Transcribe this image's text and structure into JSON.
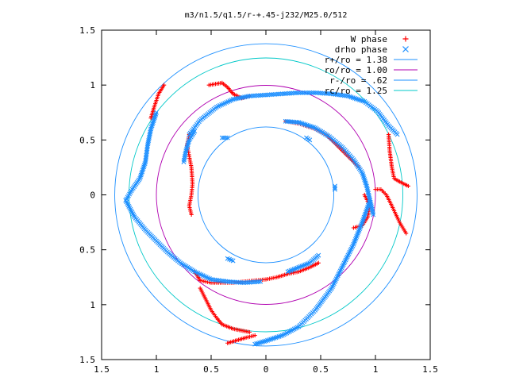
{
  "chart_data": {
    "type": "scatter",
    "title": "m3/n1.5/q1.5/r-+.45-j232/M25.0/512",
    "xlim": [
      -1.5,
      1.5
    ],
    "ylim": [
      -1.5,
      1.5
    ],
    "x_ticks": [
      -1.5,
      -1,
      -0.5,
      0,
      0.5,
      1,
      1.5
    ],
    "y_ticks": [
      -1.5,
      -1,
      -0.5,
      0,
      0.5,
      1,
      1.5
    ],
    "x_tick_labels": [
      "1.5",
      "1",
      "0.5",
      "0",
      "0.5",
      "1",
      "1.5"
    ],
    "y_tick_labels": [
      "1.5",
      "1",
      "0.5",
      "0",
      "0.5",
      "1",
      "1.5"
    ],
    "grid": false,
    "legend_position": "top-right",
    "series": [
      {
        "name": "W phase",
        "marker": "+",
        "color": "#ff0000",
        "arms": [
          [
            [
              -1.05,
              0.7
            ],
            [
              -1.02,
              0.8
            ],
            [
              -0.98,
              0.92
            ],
            [
              -0.93,
              1.0
            ]
          ],
          [
            [
              -0.52,
              1.0
            ],
            [
              -0.4,
              1.02
            ],
            [
              -0.35,
              0.98
            ],
            [
              -0.3,
              0.92
            ],
            [
              -0.22,
              0.88
            ],
            [
              -0.15,
              0.9
            ]
          ],
          [
            [
              -0.7,
              0.55
            ],
            [
              -0.72,
              0.45
            ],
            [
              -0.7,
              0.35
            ],
            [
              -0.68,
              0.25
            ],
            [
              -0.67,
              0.1
            ],
            [
              -0.68,
              0.0
            ],
            [
              -0.7,
              -0.1
            ],
            [
              -0.68,
              -0.18
            ]
          ],
          [
            [
              0.18,
              0.67
            ],
            [
              0.3,
              0.65
            ],
            [
              0.45,
              0.6
            ],
            [
              0.55,
              0.55
            ],
            [
              0.65,
              0.45
            ],
            [
              0.75,
              0.35
            ],
            [
              0.85,
              0.25
            ]
          ],
          [
            [
              1.12,
              0.55
            ],
            [
              1.13,
              0.4
            ],
            [
              1.15,
              0.25
            ],
            [
              1.17,
              0.15
            ],
            [
              1.22,
              0.12
            ],
            [
              1.3,
              0.08
            ]
          ],
          [
            [
              1.28,
              -0.35
            ],
            [
              1.22,
              -0.25
            ],
            [
              1.15,
              -0.1
            ],
            [
              1.1,
              0.0
            ],
            [
              1.05,
              0.05
            ],
            [
              1.0,
              0.05
            ]
          ],
          [
            [
              -0.65,
              -0.7
            ],
            [
              -0.6,
              -0.78
            ],
            [
              -0.5,
              -0.8
            ],
            [
              -0.4,
              -0.8
            ],
            [
              -0.3,
              -0.8
            ]
          ],
          [
            [
              -0.6,
              -0.85
            ],
            [
              -0.55,
              -0.95
            ],
            [
              -0.5,
              -1.05
            ],
            [
              -0.45,
              -1.12
            ],
            [
              -0.4,
              -1.18
            ],
            [
              -0.3,
              -1.22
            ],
            [
              -0.15,
              -1.25
            ]
          ],
          [
            [
              -0.35,
              -1.35
            ],
            [
              -0.25,
              -1.32
            ],
            [
              -0.18,
              -1.3
            ],
            [
              -0.1,
              -1.28
            ]
          ],
          [
            [
              0.9,
              0.0
            ],
            [
              0.95,
              -0.1
            ],
            [
              0.93,
              -0.2
            ],
            [
              0.88,
              -0.28
            ],
            [
              0.8,
              -0.3
            ]
          ],
          [
            [
              -0.3,
              -0.8
            ],
            [
              -0.2,
              -0.79
            ],
            [
              -0.1,
              -0.78
            ],
            [
              0.0,
              -0.77
            ],
            [
              0.1,
              -0.75
            ],
            [
              0.2,
              -0.72
            ],
            [
              0.3,
              -0.7
            ],
            [
              0.4,
              -0.66
            ],
            [
              0.48,
              -0.62
            ]
          ]
        ]
      },
      {
        "name": "drho phase",
        "marker": "x",
        "color": "#1e90ff",
        "arms": [
          [
            [
              -1.28,
              -0.05
            ],
            [
              -1.2,
              -0.2
            ],
            [
              -1.1,
              -0.32
            ],
            [
              -1.0,
              -0.42
            ],
            [
              -0.9,
              -0.52
            ],
            [
              -0.78,
              -0.62
            ],
            [
              -0.65,
              -0.7
            ],
            [
              -0.5,
              -0.77
            ],
            [
              -0.35,
              -0.79
            ],
            [
              -0.2,
              -0.8
            ],
            [
              -0.05,
              -0.79
            ]
          ],
          [
            [
              -1.0,
              0.75
            ],
            [
              -1.05,
              0.6
            ],
            [
              -1.08,
              0.45
            ],
            [
              -1.1,
              0.3
            ],
            [
              -1.15,
              0.15
            ],
            [
              -1.22,
              0.05
            ],
            [
              -1.28,
              -0.05
            ]
          ],
          [
            [
              -0.7,
              0.55
            ],
            [
              -0.6,
              0.68
            ],
            [
              -0.45,
              0.8
            ],
            [
              -0.3,
              0.87
            ],
            [
              -0.15,
              0.9
            ],
            [
              0.0,
              0.91
            ],
            [
              0.15,
              0.92
            ],
            [
              0.3,
              0.93
            ],
            [
              0.45,
              0.93
            ],
            [
              0.6,
              0.92
            ],
            [
              0.75,
              0.9
            ],
            [
              0.9,
              0.85
            ],
            [
              1.02,
              0.76
            ],
            [
              1.12,
              0.63
            ],
            [
              1.2,
              0.55
            ]
          ],
          [
            [
              -0.75,
              0.3
            ],
            [
              -0.73,
              0.4
            ],
            [
              -0.7,
              0.5
            ],
            [
              -0.65,
              0.58
            ]
          ],
          [
            [
              0.18,
              0.67
            ],
            [
              0.3,
              0.66
            ],
            [
              0.45,
              0.61
            ],
            [
              0.58,
              0.53
            ],
            [
              0.7,
              0.43
            ],
            [
              0.8,
              0.32
            ],
            [
              0.88,
              0.2
            ],
            [
              0.92,
              0.08
            ],
            [
              0.95,
              -0.05
            ],
            [
              0.98,
              -0.18
            ]
          ],
          [
            [
              0.95,
              -0.05
            ],
            [
              0.88,
              -0.25
            ],
            [
              0.8,
              -0.45
            ],
            [
              0.7,
              -0.65
            ],
            [
              0.6,
              -0.85
            ],
            [
              0.45,
              -1.05
            ],
            [
              0.3,
              -1.2
            ],
            [
              0.15,
              -1.28
            ],
            [
              0.0,
              -1.33
            ],
            [
              -0.1,
              -1.36
            ]
          ],
          [
            [
              0.48,
              -0.55
            ],
            [
              0.4,
              -0.62
            ],
            [
              0.3,
              -0.66
            ],
            [
              0.2,
              -0.7
            ]
          ],
          [
            [
              -0.35,
              -0.58
            ],
            [
              -0.3,
              -0.6
            ]
          ],
          [
            [
              -0.4,
              0.52
            ],
            [
              -0.35,
              0.52
            ]
          ],
          [
            [
              0.37,
              0.52
            ],
            [
              0.4,
              0.5
            ]
          ],
          [
            [
              0.63,
              0.08
            ],
            [
              0.63,
              0.05
            ]
          ]
        ]
      }
    ],
    "circles": [
      {
        "name": "r+/ro = 1.38",
        "r": 1.38,
        "color": "#1e90ff"
      },
      {
        "name": "ro/ro = 1.00",
        "r": 1.0,
        "color": "#b000b0"
      },
      {
        "name": "r-/ro = .62",
        "r": 0.62,
        "color": "#1e90ff"
      },
      {
        "name": "rc/ro = 1.25",
        "r": 1.25,
        "color": "#00c8c8"
      }
    ]
  }
}
